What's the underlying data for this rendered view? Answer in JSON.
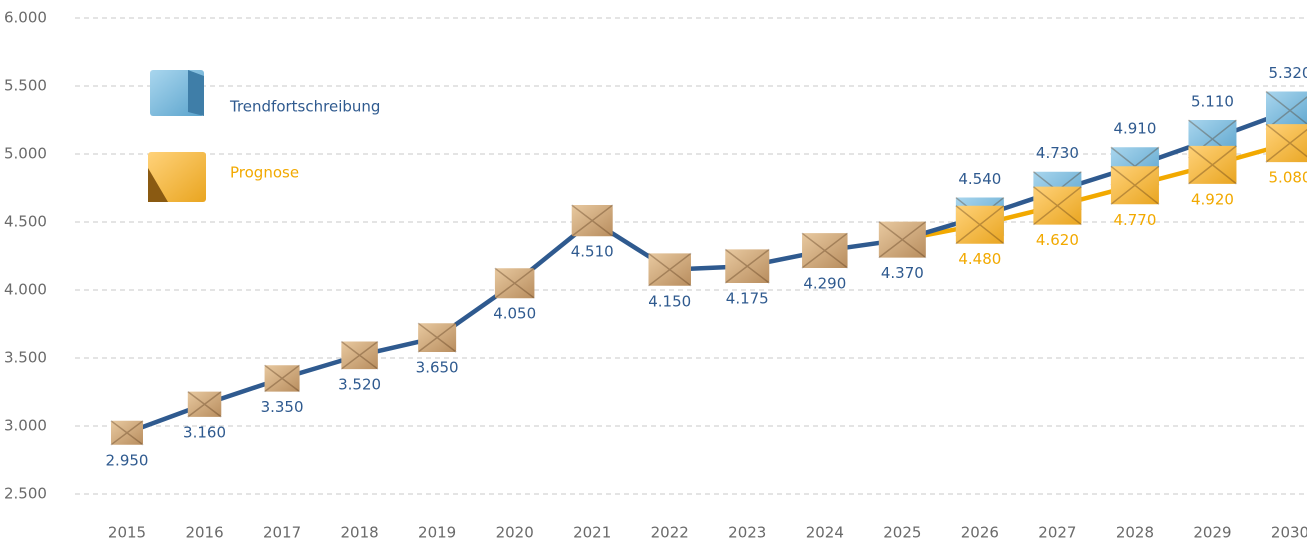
{
  "chart_data": {
    "type": "line",
    "categories": [
      "2015",
      "2016",
      "2017",
      "2018",
      "2019",
      "2020",
      "2021",
      "2022",
      "2023",
      "2024",
      "2025",
      "2026",
      "2027",
      "2028",
      "2029",
      "2030"
    ],
    "series": [
      {
        "name": "Trendfortschreibung",
        "color": "#2f5a8f",
        "values": [
          2950,
          3160,
          3350,
          3520,
          3650,
          4050,
          4510,
          4150,
          4175,
          4290,
          4370,
          4540,
          4730,
          4910,
          5110,
          5320
        ],
        "value_labels": [
          "2.950",
          "3.160",
          "3.350",
          "3.520",
          "3.650",
          "4.050",
          "4.510",
          "4.150",
          "4.175",
          "4.290",
          "4.370",
          "4.540",
          "4.730",
          "4.910",
          "5.110",
          "5.320"
        ]
      },
      {
        "name": "Prognose",
        "color": "#f2a900",
        "values": [
          null,
          null,
          null,
          null,
          null,
          null,
          null,
          null,
          null,
          null,
          4370,
          4480,
          4620,
          4770,
          4920,
          5080
        ],
        "value_labels": [
          null,
          null,
          null,
          null,
          null,
          null,
          null,
          null,
          null,
          null,
          null,
          "4.480",
          "4.620",
          "4.770",
          "4.920",
          "5.080"
        ]
      }
    ],
    "ylim": [
      2500,
      6000
    ],
    "yticks": [
      {
        "value": 2500,
        "label": "2.500"
      },
      {
        "value": 3000,
        "label": "3.000"
      },
      {
        "value": 3500,
        "label": "3.500"
      },
      {
        "value": 4000,
        "label": "4.000"
      },
      {
        "value": 4500,
        "label": "4.500"
      },
      {
        "value": 5000,
        "label": "5.000"
      },
      {
        "value": 5500,
        "label": "5.500"
      },
      {
        "value": 6000,
        "label": "6.000"
      }
    ],
    "grid": true
  }
}
